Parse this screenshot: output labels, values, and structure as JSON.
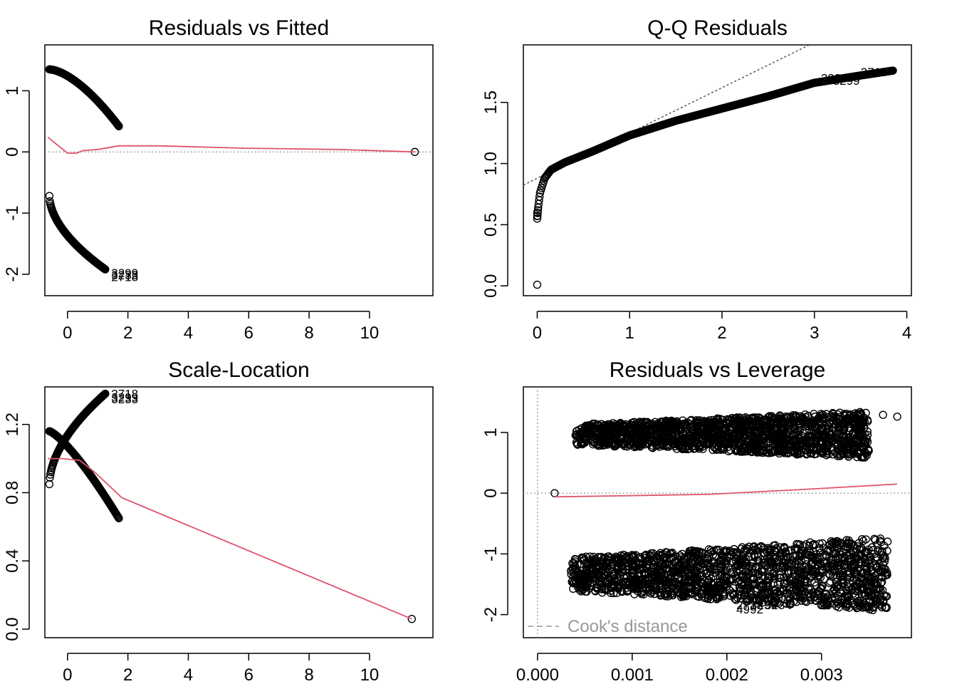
{
  "chart_data": [
    {
      "id": "resid-fitted",
      "type": "scatter",
      "title": "Residuals vs Fitted",
      "xlabel": "",
      "ylabel": "",
      "xlim": [
        -0.75,
        12.1
      ],
      "ylim": [
        -2.35,
        1.75
      ],
      "xticks": [
        0,
        2,
        4,
        6,
        8,
        10
      ],
      "yticks": [
        -2,
        -1,
        0,
        1
      ],
      "hline": 0,
      "point_groups": [
        {
          "from": [
            -0.6,
            1.35
          ],
          "to": [
            1.7,
            0.42
          ],
          "n": 120,
          "curve": 1.6
        },
        {
          "from": [
            -0.6,
            -0.72
          ],
          "to": [
            1.25,
            -1.92
          ],
          "n": 120,
          "curve": 0.55
        }
      ],
      "points": [
        [
          11.5,
          0.0
        ]
      ],
      "smooth": [
        [
          -0.65,
          0.24
        ],
        [
          -0.3,
          0.1
        ],
        [
          0.0,
          -0.02
        ],
        [
          0.3,
          -0.02
        ],
        [
          0.5,
          0.02
        ],
        [
          1.0,
          0.04
        ],
        [
          1.7,
          0.1
        ],
        [
          3,
          0.1
        ],
        [
          6,
          0.06
        ],
        [
          9,
          0.04
        ],
        [
          11.5,
          0.0
        ]
      ],
      "point_labels": [
        {
          "text": "3299",
          "x": 1.45,
          "y": -1.98
        },
        {
          "text": "3233",
          "x": 1.45,
          "y": -2.01
        },
        {
          "text": "2718",
          "x": 1.45,
          "y": -2.04
        }
      ]
    },
    {
      "id": "qq",
      "type": "scatter",
      "title": "Q-Q Residuals",
      "xlabel": "",
      "ylabel": "",
      "xlim": [
        -0.15,
        4.05
      ],
      "ylim": [
        -0.08,
        1.97
      ],
      "xticks": [
        0,
        1,
        2,
        3,
        4
      ],
      "yticks": [
        0.0,
        0.5,
        1.0,
        1.5
      ],
      "refline": {
        "intercept": 0.88,
        "slope": 0.37
      },
      "qq_curve": [
        [
          0.0,
          0.55
        ],
        [
          0.01,
          0.64
        ],
        [
          0.03,
          0.76
        ],
        [
          0.08,
          0.88
        ],
        [
          0.15,
          0.95
        ],
        [
          0.3,
          1.01
        ],
        [
          0.6,
          1.1
        ],
        [
          1.0,
          1.23
        ],
        [
          1.5,
          1.35
        ],
        [
          2.0,
          1.45
        ],
        [
          2.5,
          1.55
        ],
        [
          3.0,
          1.66
        ],
        [
          3.5,
          1.72
        ],
        [
          3.85,
          1.76
        ]
      ],
      "points": [
        [
          0.0,
          0.01
        ],
        [
          0.0,
          0.57
        ],
        [
          0.0,
          0.6
        ]
      ],
      "point_labels": [
        {
          "text": "3233",
          "x": 3.07,
          "y": 1.7
        },
        {
          "text": "3299",
          "x": 3.2,
          "y": 1.68
        },
        {
          "text": "2718",
          "x": 3.5,
          "y": 1.75
        }
      ]
    },
    {
      "id": "scale-location",
      "type": "scatter",
      "title": "Scale-Location",
      "xlabel": "",
      "ylabel": "",
      "xlim": [
        -0.75,
        12.1
      ],
      "ylim": [
        -0.05,
        1.42
      ],
      "xticks": [
        0,
        2,
        4,
        6,
        8,
        10
      ],
      "yticks": [
        0.0,
        0.4,
        0.8,
        1.2
      ],
      "yticklabels": [
        "0.0",
        "0.4",
        "0.8",
        "1.2"
      ],
      "point_groups": [
        {
          "from": [
            -0.6,
            1.16
          ],
          "to": [
            1.7,
            0.65
          ],
          "n": 120,
          "curve": 1.3
        },
        {
          "from": [
            -0.6,
            0.85
          ],
          "to": [
            1.25,
            1.38
          ],
          "n": 120,
          "curve": 0.55
        }
      ],
      "points": [
        [
          11.4,
          0.06
        ]
      ],
      "smooth": [
        [
          -0.65,
          1.0
        ],
        [
          -0.2,
          1.0
        ],
        [
          0.4,
          0.99
        ],
        [
          0.9,
          0.92
        ],
        [
          1.8,
          0.77
        ],
        [
          11.4,
          0.06
        ]
      ],
      "point_labels": [
        {
          "text": "2718",
          "x": 1.45,
          "y": 1.38
        },
        {
          "text": "3299",
          "x": 1.45,
          "y": 1.36
        },
        {
          "text": "3233",
          "x": 1.45,
          "y": 1.35
        }
      ]
    },
    {
      "id": "resid-leverage",
      "type": "scatter",
      "title": "Residuals vs Leverage",
      "xlabel": "",
      "ylabel": "",
      "xlim": [
        -0.00015,
        0.00395
      ],
      "ylim": [
        -2.38,
        1.75
      ],
      "xticks": [
        0.0,
        0.001,
        0.002,
        0.003
      ],
      "xticklabels": [
        "0.000",
        "0.001",
        "0.002",
        "0.003"
      ],
      "yticks": [
        -2,
        -1,
        0,
        1
      ],
      "vline": 0,
      "hline": 0,
      "clouds": [
        {
          "xmin": 0.0004,
          "xmax": 0.0035,
          "ymin": 0.58,
          "ymax": 1.35,
          "n": 1700
        },
        {
          "xmin": 0.00035,
          "xmax": 0.0037,
          "ymin": -1.95,
          "ymax": -0.72,
          "n": 1800
        }
      ],
      "points": [
        [
          0.00018,
          0.0
        ],
        [
          0.00365,
          1.29
        ],
        [
          0.0038,
          1.26
        ]
      ],
      "smooth": [
        [
          0.00018,
          -0.06
        ],
        [
          0.001,
          -0.04
        ],
        [
          0.0018,
          -0.02
        ],
        [
          0.0028,
          0.06
        ],
        [
          0.0038,
          0.15
        ]
      ],
      "point_labels": [
        {
          "text": "2718",
          "x": 0.0021,
          "y": -1.84
        },
        {
          "text": "3299",
          "x": 0.00225,
          "y": -1.84
        },
        {
          "text": "4992",
          "x": 0.0021,
          "y": -1.91
        },
        {
          "text": "3234",
          "x": 0.0024,
          "y": -1.84
        }
      ],
      "legend": {
        "text": "Cook's distance",
        "position": "bottom-left"
      }
    }
  ]
}
